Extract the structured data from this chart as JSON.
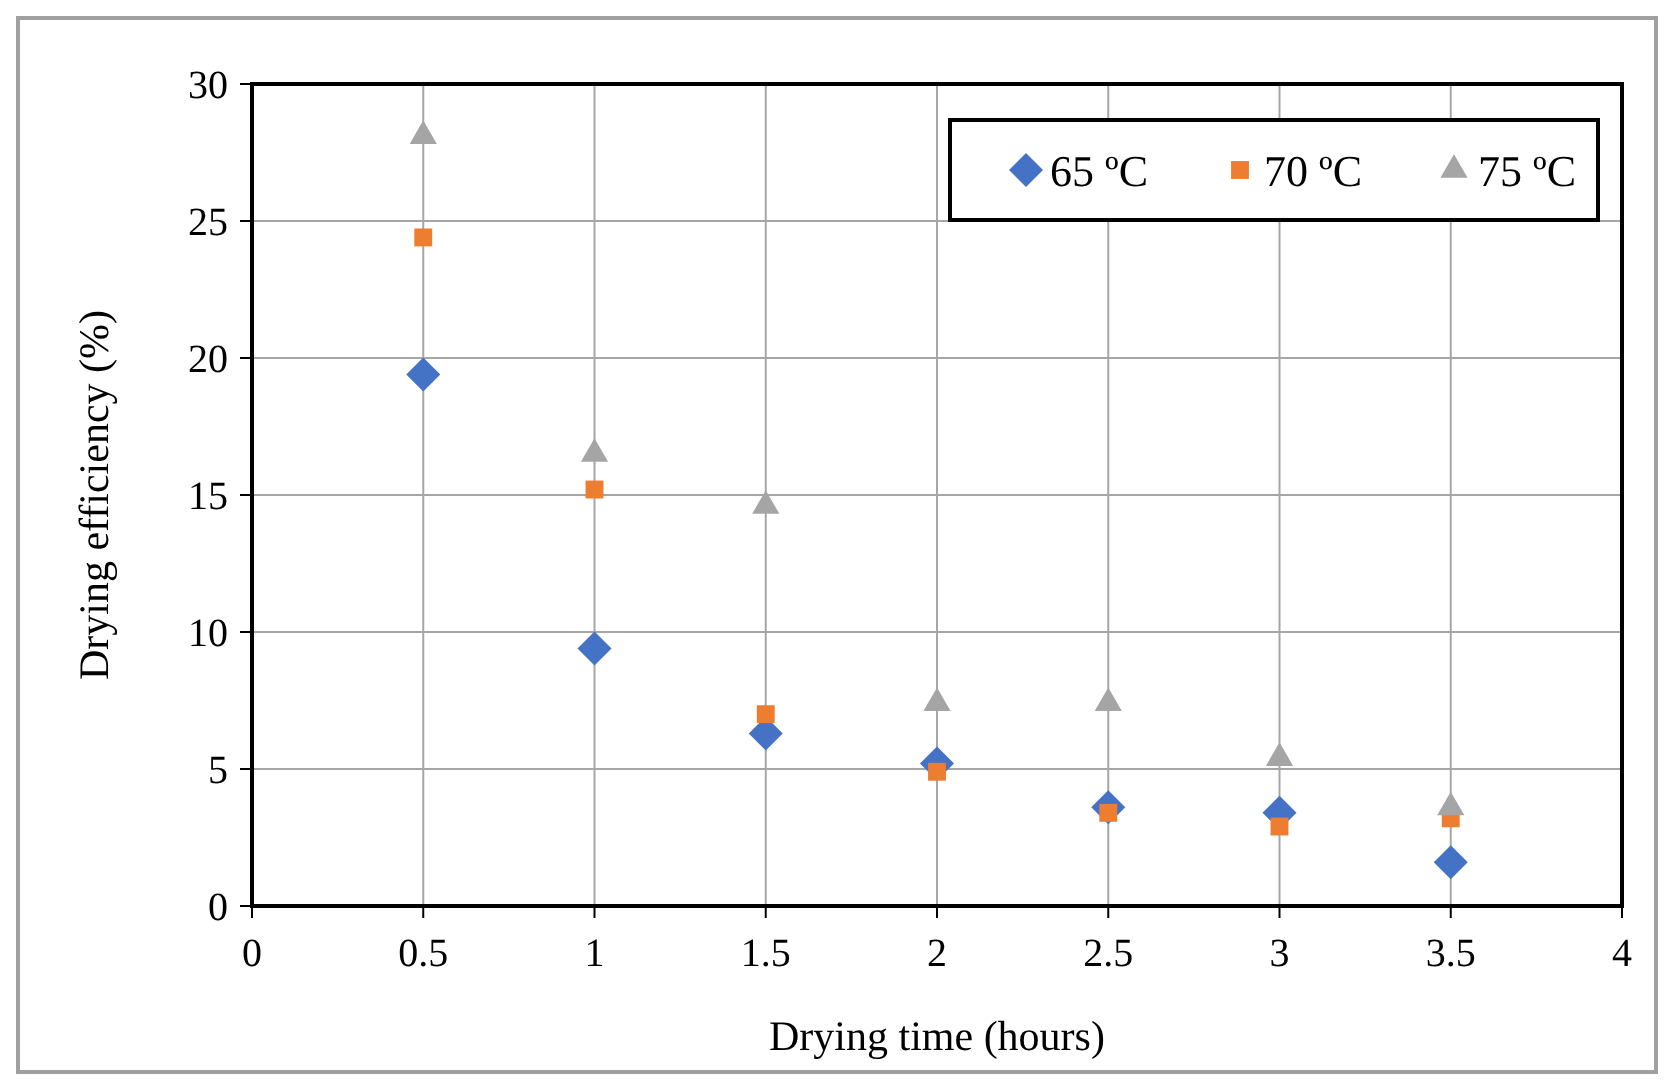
{
  "chart_data": {
    "type": "scatter",
    "xlabel": "Drying time (hours)",
    "ylabel": "Drying efficiency (%)",
    "x": [
      0.5,
      1,
      1.5,
      2,
      2.5,
      3,
      3.5
    ],
    "series": [
      {
        "name": "65 ºC",
        "color": "#4472c4",
        "marker": "diamond",
        "values": [
          19.4,
          9.4,
          6.3,
          5.2,
          3.6,
          3.4,
          1.6
        ]
      },
      {
        "name": "70 ºC",
        "color": "#ed7d31",
        "marker": "square",
        "values": [
          24.4,
          15.2,
          7.0,
          4.9,
          3.4,
          2.9,
          3.2
        ]
      },
      {
        "name": "75 ºC",
        "color": "#a5a5a5",
        "marker": "triangle",
        "values": [
          28.1,
          16.5,
          14.6,
          7.4,
          7.4,
          5.4,
          3.6
        ]
      }
    ],
    "xlim": [
      0,
      4
    ],
    "xticks": [
      0,
      0.5,
      1,
      1.5,
      2,
      2.5,
      3,
      3.5,
      4
    ],
    "ylim": [
      0,
      30
    ],
    "yticks": [
      0,
      5,
      10,
      15,
      20,
      25,
      30
    ],
    "grid": true,
    "legend": "top right"
  }
}
